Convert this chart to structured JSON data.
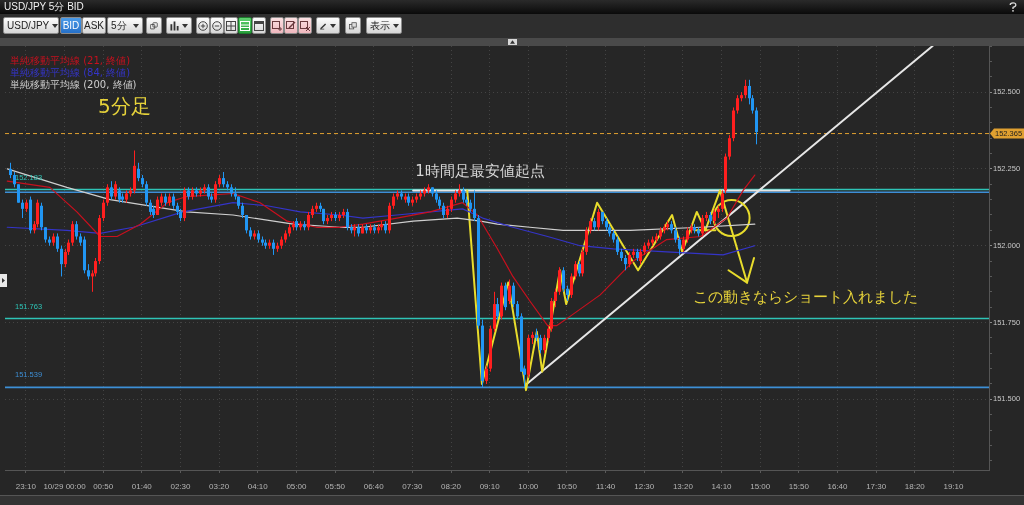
{
  "chart_data": {
    "type": "candlestick",
    "title": "USD/JPY 5分 BID",
    "subtitle": "5分足",
    "annotations": [
      "USD/JPY",
      "BID",
      "ASK",
      "5分",
      "表示",
      "1時間足最安値起点",
      "この動きならショート入れました"
    ],
    "legend": "top left",
    "grid": true,
    "xlim": [
      "--10-28T22:43",
      "--10-29T19:56"
    ],
    "ylim": [
      151.27,
      152.65
    ],
    "xticks": [
      {
        "value": "--10-28T23:10",
        "label": "23:10"
      },
      {
        "value": "--10-29T00:00",
        "label": "10/29 00:00"
      },
      {
        "value": "--10-29T00:50",
        "label": "00:50"
      },
      {
        "value": "--10-29T01:40",
        "label": "01:40"
      },
      {
        "value": "--10-29T02:30",
        "label": "02:30"
      },
      {
        "value": "--10-29T03:20",
        "label": "03:20"
      },
      {
        "value": "--10-29T04:10",
        "label": "04:10"
      },
      {
        "value": "--10-29T05:00",
        "label": "05:00"
      },
      {
        "value": "--10-29T05:50",
        "label": "05:50"
      },
      {
        "value": "--10-29T06:40",
        "label": "06:40"
      },
      {
        "value": "--10-29T07:30",
        "label": "07:30"
      },
      {
        "value": "--10-29T08:20",
        "label": "08:20"
      },
      {
        "value": "--10-29T09:10",
        "label": "09:10"
      },
      {
        "value": "--10-29T10:00",
        "label": "10:00"
      },
      {
        "value": "--10-29T10:50",
        "label": "10:50"
      },
      {
        "value": "--10-29T11:40",
        "label": "11:40"
      },
      {
        "value": "--10-29T12:30",
        "label": "12:30"
      },
      {
        "value": "--10-29T13:20",
        "label": "13:20"
      },
      {
        "value": "--10-29T14:10",
        "label": "14:10"
      },
      {
        "value": "--10-29T15:00",
        "label": "15:00"
      },
      {
        "value": "--10-29T15:50",
        "label": "15:50"
      },
      {
        "value": "--10-29T16:40",
        "label": "16:40"
      },
      {
        "value": "--10-29T17:30",
        "label": "17:30"
      },
      {
        "value": "--10-29T18:20",
        "label": "18:20"
      },
      {
        "value": "--10-29T19:10",
        "label": "19:10"
      }
    ],
    "yticks": [
      {
        "value": 151.3,
        "label": null
      },
      {
        "value": 151.35,
        "label": null
      },
      {
        "value": 151.4,
        "label": null
      },
      {
        "value": 151.45,
        "label": null
      },
      {
        "value": 151.5,
        "label": "151.500"
      },
      {
        "value": 151.55,
        "label": null
      },
      {
        "value": 151.6,
        "label": null
      },
      {
        "value": 151.65,
        "label": null
      },
      {
        "value": 151.7,
        "label": null
      },
      {
        "value": 151.75,
        "label": "151.750"
      },
      {
        "value": 151.8,
        "label": null
      },
      {
        "value": 151.85,
        "label": null
      },
      {
        "value": 151.9,
        "label": null
      },
      {
        "value": 151.95,
        "label": null
      },
      {
        "value": 152,
        "label": "152.000"
      },
      {
        "value": 152.05,
        "label": null
      },
      {
        "value": 152.1,
        "label": null
      },
      {
        "value": 152.15,
        "label": null
      },
      {
        "value": 152.2,
        "label": null
      },
      {
        "value": 152.25,
        "label": "152.250"
      },
      {
        "value": 152.3,
        "label": null
      },
      {
        "value": 152.35,
        "label": null
      },
      {
        "value": 152.4,
        "label": null
      },
      {
        "value": 152.45,
        "label": null
      },
      {
        "value": 152.5,
        "label": "152.500"
      },
      {
        "value": 152.55,
        "label": null
      },
      {
        "value": 152.6,
        "label": null
      },
      {
        "value": 152.65,
        "label": null
      }
    ],
    "ref_lines": [
      {
        "axis": "y",
        "value": 152.183,
        "label": "152.183",
        "color": "#2ec4b6"
      },
      {
        "axis": "y",
        "value": 152.174,
        "color": "#3d8fd6"
      },
      {
        "axis": "y",
        "value": 151.763,
        "label": "151.763",
        "color": "#2ec4b6"
      },
      {
        "axis": "y",
        "value": 151.539,
        "label": "151.539",
        "color": "#3d8fd6"
      },
      {
        "axis": "y",
        "value": 152.365,
        "label": "152.365",
        "color": "#e0a030",
        "line_style": "dashed"
      }
    ],
    "x": [
      "--10-28T22:50",
      "--10-28T22:55",
      "--10-28T23:00",
      "--10-28T23:05",
      "--10-28T23:10",
      "--10-28T23:15",
      "--10-28T23:20",
      "--10-28T23:25",
      "--10-28T23:30",
      "--10-28T23:35",
      "--10-28T23:40",
      "--10-28T23:45",
      "--10-28T23:50",
      "--10-28T23:55",
      "--10-29T00:00",
      "--10-29T00:05",
      "--10-29T00:10",
      "--10-29T00:15",
      "--10-29T00:20",
      "--10-29T00:25",
      "--10-29T00:30",
      "--10-29T00:35",
      "--10-29T00:40",
      "--10-29T00:45",
      "--10-29T00:50",
      "--10-29T00:55",
      "--10-29T01:00",
      "--10-29T01:05",
      "--10-29T01:10",
      "--10-29T01:15",
      "--10-29T01:20",
      "--10-29T01:25",
      "--10-29T01:30",
      "--10-29T01:35",
      "--10-29T01:40",
      "--10-29T01:45",
      "--10-29T01:50",
      "--10-29T01:55",
      "--10-29T02:00",
      "--10-29T02:05",
      "--10-29T02:10",
      "--10-29T02:15",
      "--10-29T02:20",
      "--10-29T02:25",
      "--10-29T02:30",
      "--10-29T02:35",
      "--10-29T02:40",
      "--10-29T02:45",
      "--10-29T02:50",
      "--10-29T02:55",
      "--10-29T03:00",
      "--10-29T03:05",
      "--10-29T03:10",
      "--10-29T03:15",
      "--10-29T03:20",
      "--10-29T03:25",
      "--10-29T03:30",
      "--10-29T03:35",
      "--10-29T03:40",
      "--10-29T03:45",
      "--10-29T03:50",
      "--10-29T03:55",
      "--10-29T04:00",
      "--10-29T04:05",
      "--10-29T04:10",
      "--10-29T04:15",
      "--10-29T04:20",
      "--10-29T04:25",
      "--10-29T04:30",
      "--10-29T04:35",
      "--10-29T04:40",
      "--10-29T04:45",
      "--10-29T04:50",
      "--10-29T04:55",
      "--10-29T05:00",
      "--10-29T05:05",
      "--10-29T05:10",
      "--10-29T05:15",
      "--10-29T05:20",
      "--10-29T05:25",
      "--10-29T05:30",
      "--10-29T05:35",
      "--10-29T05:40",
      "--10-29T05:45",
      "--10-29T05:50",
      "--10-29T05:55",
      "--10-29T06:00",
      "--10-29T06:05",
      "--10-29T06:10",
      "--10-29T06:15",
      "--10-29T06:20",
      "--10-29T06:25",
      "--10-29T06:30",
      "--10-29T06:35",
      "--10-29T06:40",
      "--10-29T06:45",
      "--10-29T06:50",
      "--10-29T06:55",
      "--10-29T07:00",
      "--10-29T07:05",
      "--10-29T07:10",
      "--10-29T07:15",
      "--10-29T07:20",
      "--10-29T07:25",
      "--10-29T07:30",
      "--10-29T07:35",
      "--10-29T07:40",
      "--10-29T07:45",
      "--10-29T07:50",
      "--10-29T07:55",
      "--10-29T08:00",
      "--10-29T08:05",
      "--10-29T08:10",
      "--10-29T08:15",
      "--10-29T08:20",
      "--10-29T08:25",
      "--10-29T08:30",
      "--10-29T08:35",
      "--10-29T08:40",
      "--10-29T08:45",
      "--10-29T08:50",
      "--10-29T08:55",
      "--10-29T09:00",
      "--10-29T09:05",
      "--10-29T09:10",
      "--10-29T09:15",
      "--10-29T09:20",
      "--10-29T09:25",
      "--10-29T09:30",
      "--10-29T09:35",
      "--10-29T09:40",
      "--10-29T09:45",
      "--10-29T09:50",
      "--10-29T09:55",
      "--10-29T10:00",
      "--10-29T10:05",
      "--10-29T10:10",
      "--10-29T10:15",
      "--10-29T10:20",
      "--10-29T10:25",
      "--10-29T10:30",
      "--10-29T10:35",
      "--10-29T10:40",
      "--10-29T10:45",
      "--10-29T10:50",
      "--10-29T10:55",
      "--10-29T11:00",
      "--10-29T11:05",
      "--10-29T11:10",
      "--10-29T11:15",
      "--10-29T11:20",
      "--10-29T11:25",
      "--10-29T11:30",
      "--10-29T11:35",
      "--10-29T11:40",
      "--10-29T11:45",
      "--10-29T11:50",
      "--10-29T11:55",
      "--10-29T12:00",
      "--10-29T12:05",
      "--10-29T12:10",
      "--10-29T12:15",
      "--10-29T12:20",
      "--10-29T12:25",
      "--10-29T12:30",
      "--10-29T12:35",
      "--10-29T12:40",
      "--10-29T12:45",
      "--10-29T12:50",
      "--10-29T12:55",
      "--10-29T13:00",
      "--10-29T13:05",
      "--10-29T13:10",
      "--10-29T13:15",
      "--10-29T13:20",
      "--10-29T13:25",
      "--10-29T13:30",
      "--10-29T13:35",
      "--10-29T13:40",
      "--10-29T13:45",
      "--10-29T13:50",
      "--10-29T13:55",
      "--10-29T14:00",
      "--10-29T14:05",
      "--10-29T14:10",
      "--10-29T14:15",
      "--10-29T14:20",
      "--10-29T14:25",
      "--10-29T14:30",
      "--10-29T14:35",
      "--10-29T14:40",
      "--10-29T14:45",
      "--10-29T14:50",
      "--10-29T14:55"
    ],
    "ohlc": [
      [
        152.25,
        152.27,
        152.22,
        152.23
      ],
      [
        152.23,
        152.24,
        152.19,
        152.2
      ],
      [
        152.2,
        152.2,
        152.14,
        152.14
      ],
      [
        152.14,
        152.15,
        152.09,
        152.12
      ],
      [
        152.12,
        152.15,
        152.11,
        152.14
      ],
      [
        152.15,
        152.16,
        152.04,
        152.05
      ],
      [
        152.05,
        152.08,
        152.04,
        152.07
      ],
      [
        152.07,
        152.15,
        152.06,
        152.14
      ],
      [
        152.13,
        152.14,
        152.05,
        152.06
      ],
      [
        152.06,
        152.06,
        152.01,
        152.02
      ],
      [
        152.02,
        152.03,
        152,
        152.01
      ],
      [
        152.01,
        152.04,
        152,
        152.03
      ],
      [
        152.03,
        152.04,
        151.98,
        151.99
      ],
      [
        151.99,
        152,
        151.9,
        151.94
      ],
      [
        151.94,
        151.99,
        151.93,
        151.98
      ],
      [
        151.98,
        152.02,
        151.97,
        152.01
      ],
      [
        152.01,
        152.08,
        152,
        152.07
      ],
      [
        152.07,
        152.08,
        152.02,
        152.03
      ],
      [
        152.03,
        152.04,
        152,
        152.01
      ],
      [
        152.02,
        152.03,
        151.91,
        151.92
      ],
      [
        151.92,
        151.94,
        151.89,
        151.9
      ],
      [
        151.9,
        151.92,
        151.85,
        151.91
      ],
      [
        151.91,
        151.96,
        151.9,
        151.95
      ],
      [
        151.95,
        152.1,
        151.94,
        152.09
      ],
      [
        152.09,
        152.15,
        152.08,
        152.14
      ],
      [
        152.14,
        152.2,
        152.13,
        152.19
      ],
      [
        152.19,
        152.21,
        152.15,
        152.16
      ],
      [
        152.16,
        152.21,
        152.15,
        152.2
      ],
      [
        152.18,
        152.19,
        152.14,
        152.15
      ],
      [
        152.16,
        152.17,
        152.14,
        152.15
      ],
      [
        152.15,
        152.18,
        152.14,
        152.17
      ],
      [
        152.17,
        152.19,
        152.16,
        152.18
      ],
      [
        152.18,
        152.31,
        152.17,
        152.26
      ],
      [
        152.25,
        152.27,
        152.21,
        152.22
      ],
      [
        152.22,
        152.23,
        152.19,
        152.2
      ],
      [
        152.2,
        152.21,
        152.13,
        152.14
      ],
      [
        152.14,
        152.15,
        152.1,
        152.11
      ],
      [
        152.12,
        152.13,
        152.09,
        152.1
      ],
      [
        152.1,
        152.16,
        152.1,
        152.15
      ],
      [
        152.14,
        152.17,
        152.13,
        152.16
      ],
      [
        152.16,
        152.17,
        152.13,
        152.14
      ],
      [
        152.14,
        152.17,
        152.13,
        152.16
      ],
      [
        152.16,
        152.17,
        152.12,
        152.13
      ],
      [
        152.13,
        152.14,
        152.1,
        152.11
      ],
      [
        152.11,
        152.12,
        152.08,
        152.09
      ],
      [
        152.09,
        152.19,
        152.08,
        152.18
      ],
      [
        152.18,
        152.19,
        152.15,
        152.16
      ],
      [
        152.16,
        152.19,
        152.15,
        152.18
      ],
      [
        152.18,
        152.19,
        152.16,
        152.17
      ],
      [
        152.17,
        152.19,
        152.16,
        152.18
      ],
      [
        152.18,
        152.2,
        152.17,
        152.19
      ],
      [
        152.19,
        152.2,
        152.15,
        152.16
      ],
      [
        152.16,
        152.17,
        152.14,
        152.15
      ],
      [
        152.15,
        152.21,
        152.14,
        152.2
      ],
      [
        152.2,
        152.23,
        152.19,
        152.22
      ],
      [
        152.22,
        152.24,
        152.19,
        152.2
      ],
      [
        152.2,
        152.21,
        152.18,
        152.19
      ],
      [
        152.19,
        152.2,
        152.16,
        152.17
      ],
      [
        152.17,
        152.19,
        152.15,
        152.16
      ],
      [
        152.16,
        152.16,
        152.12,
        152.13
      ],
      [
        152.13,
        152.14,
        152.09,
        152.1
      ],
      [
        152.1,
        152.1,
        152.04,
        152.05
      ],
      [
        152.05,
        152.06,
        152.02,
        152.03
      ],
      [
        152.03,
        152.05,
        152.02,
        152.04
      ],
      [
        152.04,
        152.05,
        152.01,
        152.02
      ],
      [
        152.02,
        152.03,
        152,
        152.01
      ],
      [
        152.01,
        152.02,
        151.99,
        152
      ],
      [
        152,
        152.02,
        151.99,
        152.01
      ],
      [
        152.01,
        152.02,
        151.97,
        151.99
      ],
      [
        151.99,
        152.01,
        151.98,
        152
      ],
      [
        152,
        152.03,
        151.99,
        152.02
      ],
      [
        152.02,
        152.05,
        152.01,
        152.04
      ],
      [
        152.04,
        152.07,
        152.03,
        152.06
      ],
      [
        152.06,
        152.08,
        152.05,
        152.07
      ],
      [
        152.08,
        152.09,
        152.05,
        152.06
      ],
      [
        152.06,
        152.08,
        152.05,
        152.07
      ],
      [
        152.07,
        152.08,
        152.05,
        152.06
      ],
      [
        152.06,
        152.11,
        152.05,
        152.1
      ],
      [
        152.1,
        152.13,
        152.09,
        152.12
      ],
      [
        152.12,
        152.14,
        152.11,
        152.13
      ],
      [
        152.13,
        152.14,
        152.11,
        152.12
      ],
      [
        152.12,
        152.12,
        152.07,
        152.08
      ],
      [
        152.08,
        152.1,
        152.07,
        152.09
      ],
      [
        152.09,
        152.11,
        152.08,
        152.1
      ],
      [
        152.1,
        152.11,
        152.08,
        152.09
      ],
      [
        152.09,
        152.11,
        152.08,
        152.1
      ],
      [
        152.1,
        152.12,
        152.09,
        152.11
      ],
      [
        152.11,
        152.12,
        152.05,
        152.06
      ],
      [
        152.06,
        152.07,
        152.04,
        152.05
      ],
      [
        152.05,
        152.07,
        152.03,
        152.06
      ],
      [
        152.06,
        152.07,
        152.03,
        152.04
      ],
      [
        152.04,
        152.07,
        152.04,
        152.06
      ],
      [
        152.06,
        152.07,
        152.04,
        152.05
      ],
      [
        152.05,
        152.07,
        152.04,
        152.06
      ],
      [
        152.06,
        152.07,
        152.04,
        152.05
      ],
      [
        152.05,
        152.07,
        152.04,
        152.06
      ],
      [
        152.06,
        152.08,
        152.05,
        152.07
      ],
      [
        152.07,
        152.08,
        152.04,
        152.05
      ],
      [
        152.05,
        152.14,
        152.04,
        152.13
      ],
      [
        152.13,
        152.17,
        152.12,
        152.16
      ],
      [
        152.16,
        152.18,
        152.15,
        152.17
      ],
      [
        152.17,
        152.18,
        152.15,
        152.16
      ],
      [
        152.15,
        152.17,
        152.14,
        152.16
      ],
      [
        152.16,
        152.17,
        152.13,
        152.14
      ],
      [
        152.14,
        152.16,
        152.13,
        152.15
      ],
      [
        152.15,
        152.17,
        152.14,
        152.16
      ],
      [
        152.16,
        152.18,
        152.15,
        152.17
      ],
      [
        152.17,
        152.19,
        152.16,
        152.18
      ],
      [
        152.18,
        152.2,
        152.17,
        152.19
      ],
      [
        152.19,
        152.19,
        152.16,
        152.17
      ],
      [
        152.17,
        152.18,
        152.14,
        152.15
      ],
      [
        152.15,
        152.16,
        152.12,
        152.13
      ],
      [
        152.13,
        152.14,
        152.09,
        152.1
      ],
      [
        152.1,
        152.13,
        152.09,
        152.12
      ],
      [
        152.12,
        152.16,
        152.11,
        152.15
      ],
      [
        152.15,
        152.18,
        152.14,
        152.17
      ],
      [
        152.17,
        152.2,
        152.16,
        152.18
      ],
      [
        152.18,
        152.19,
        152.14,
        152.15
      ],
      [
        152.15,
        152.16,
        152.13,
        152.14
      ],
      [
        152.14,
        152.15,
        152.11,
        152.12
      ],
      [
        152.12,
        152.18,
        152.08,
        152.09
      ],
      [
        152.09,
        152.1,
        151.73,
        151.74
      ],
      [
        151.74,
        151.76,
        151.54,
        151.56
      ],
      [
        151.56,
        151.61,
        151.55,
        151.6
      ],
      [
        151.6,
        151.74,
        151.59,
        151.73
      ],
      [
        151.73,
        151.85,
        151.72,
        151.81
      ],
      [
        151.81,
        151.83,
        151.76,
        151.77
      ],
      [
        151.77,
        151.88,
        151.76,
        151.87
      ],
      [
        151.87,
        151.88,
        151.79,
        151.8
      ],
      [
        151.82,
        151.89,
        151.81,
        151.87
      ],
      [
        151.87,
        151.88,
        151.8,
        151.81
      ],
      [
        151.81,
        151.82,
        151.76,
        151.77
      ],
      [
        151.77,
        151.78,
        151.59,
        151.59
      ],
      [
        151.6,
        151.61,
        151.54,
        151.58
      ],
      [
        151.58,
        151.71,
        151.57,
        151.7
      ],
      [
        151.7,
        151.72,
        151.68,
        151.71
      ],
      [
        151.71,
        151.73,
        151.69,
        151.7
      ],
      [
        151.7,
        151.71,
        151.65,
        151.66
      ],
      [
        151.66,
        151.71,
        151.65,
        151.7
      ],
      [
        151.7,
        151.74,
        151.69,
        151.73
      ],
      [
        151.73,
        151.83,
        151.72,
        151.82
      ],
      [
        151.82,
        151.86,
        151.8,
        151.85
      ],
      [
        151.85,
        151.93,
        151.84,
        151.92
      ],
      [
        151.92,
        151.93,
        151.85,
        151.86
      ],
      [
        151.86,
        151.87,
        151.82,
        151.84
      ],
      [
        151.84,
        151.91,
        151.83,
        151.9
      ],
      [
        151.9,
        151.95,
        151.89,
        151.94
      ],
      [
        151.94,
        151.95,
        151.9,
        151.91
      ],
      [
        151.91,
        151.99,
        151.9,
        151.98
      ],
      [
        151.98,
        152.06,
        151.97,
        152.05
      ],
      [
        152.05,
        152.09,
        152.04,
        152.08
      ],
      [
        152.08,
        152.09,
        152.05,
        152.06
      ],
      [
        152.06,
        152.12,
        152.05,
        152.11
      ],
      [
        152.11,
        152.11,
        152.07,
        152.08
      ],
      [
        152.08,
        152.09,
        152.05,
        152.06
      ],
      [
        152.06,
        152.07,
        152.03,
        152.04
      ],
      [
        152.04,
        152.05,
        152.01,
        152.02
      ],
      [
        152.02,
        152.03,
        151.97,
        151.98
      ],
      [
        151.98,
        151.99,
        151.95,
        151.96
      ],
      [
        151.96,
        151.97,
        151.92,
        151.94
      ],
      [
        151.94,
        151.98,
        151.93,
        151.97
      ],
      [
        151.97,
        151.99,
        151.96,
        151.98
      ],
      [
        151.98,
        151.99,
        151.95,
        151.96
      ],
      [
        151.95,
        151.99,
        151.94,
        151.98
      ],
      [
        151.98,
        152.01,
        151.97,
        152
      ],
      [
        152,
        152.02,
        151.99,
        152.01
      ],
      [
        152.01,
        152.03,
        152,
        152.02
      ],
      [
        152.02,
        152.04,
        152.01,
        152.03
      ],
      [
        152.03,
        152.06,
        152.02,
        152.05
      ],
      [
        152.05,
        152.07,
        152.04,
        152.06
      ],
      [
        152.06,
        152.08,
        152.05,
        152.07
      ],
      [
        152.07,
        152.08,
        152.04,
        152.05
      ],
      [
        152.05,
        152.06,
        152.01,
        152.02
      ],
      [
        152.02,
        152.03,
        151.97,
        151.99
      ],
      [
        151.99,
        152.03,
        151.98,
        152.02
      ],
      [
        152.02,
        152.06,
        152.01,
        152.05
      ],
      [
        152.05,
        152.07,
        152.04,
        152.06
      ],
      [
        152.06,
        152.07,
        152.04,
        152.05
      ],
      [
        152.05,
        152.06,
        152.03,
        152.04
      ],
      [
        152.04,
        152.1,
        152.03,
        152.09
      ],
      [
        152.09,
        152.11,
        152.08,
        152.1
      ],
      [
        152.1,
        152.11,
        152.07,
        152.08
      ],
      [
        152.08,
        152.12,
        152.07,
        152.11
      ],
      [
        152.11,
        152.13,
        152.09,
        152.12
      ],
      [
        152.12,
        152.18,
        152.11,
        152.17
      ],
      [
        152.18,
        152.3,
        152.17,
        152.29
      ],
      [
        152.29,
        152.36,
        152.28,
        152.35
      ],
      [
        152.35,
        152.45,
        152.34,
        152.44
      ],
      [
        152.44,
        152.49,
        152.43,
        152.48
      ],
      [
        152.48,
        152.5,
        152.47,
        152.49
      ],
      [
        152.49,
        152.54,
        152.48,
        152.52
      ],
      [
        152.52,
        152.54,
        152.46,
        152.48
      ],
      [
        152.48,
        152.49,
        152.43,
        152.44
      ],
      [
        152.44,
        152.45,
        152.33,
        152.37
      ]
    ],
    "colors": [
      "#2196f3",
      "#2196f3",
      "#2196f3",
      "#2196f3",
      "#ff1f1f",
      "#2196f3",
      "#ff1f1f",
      "#ff1f1f",
      "#2196f3",
      "#2196f3",
      "#2196f3",
      "#ff1f1f",
      "#2196f3",
      "#2196f3",
      "#ff1f1f",
      "#ff1f1f",
      "#ff1f1f",
      "#2196f3",
      "#2196f3",
      "#2196f3",
      "#2196f3",
      "#ff1f1f",
      "#ff1f1f",
      "#ff1f1f",
      "#ff1f1f",
      "#ff1f1f",
      "#2196f3",
      "#ff1f1f",
      "#2196f3",
      "#2196f3",
      "#ff1f1f",
      "#ff1f1f",
      "#ff1f1f",
      "#2196f3",
      "#2196f3",
      "#2196f3",
      "#2196f3",
      "#2196f3",
      "#ff1f1f",
      "#ff1f1f",
      "#2196f3",
      "#ff1f1f",
      "#2196f3",
      "#2196f3",
      "#2196f3",
      "#ff1f1f",
      "#2196f3",
      "#ff1f1f",
      "#2196f3",
      "#ff1f1f",
      "#ff1f1f",
      "#2196f3",
      "#2196f3",
      "#ff1f1f",
      "#ff1f1f",
      "#2196f3",
      "#2196f3",
      "#2196f3",
      "#2196f3",
      "#2196f3",
      "#2196f3",
      "#2196f3",
      "#2196f3",
      "#ff1f1f",
      "#2196f3",
      "#2196f3",
      "#2196f3",
      "#ff1f1f",
      "#2196f3",
      "#ff1f1f",
      "#ff1f1f",
      "#ff1f1f",
      "#ff1f1f",
      "#ff1f1f",
      "#2196f3",
      "#ff1f1f",
      "#2196f3",
      "#ff1f1f",
      "#ff1f1f",
      "#ff1f1f",
      "#2196f3",
      "#2196f3",
      "#ff1f1f",
      "#ff1f1f",
      "#2196f3",
      "#ff1f1f",
      "#ff1f1f",
      "#2196f3",
      "#2196f3",
      "#ff1f1f",
      "#2196f3",
      "#ff1f1f",
      "#2196f3",
      "#ff1f1f",
      "#2196f3",
      "#ff1f1f",
      "#ff1f1f",
      "#2196f3",
      "#ff1f1f",
      "#ff1f1f",
      "#ff1f1f",
      "#2196f3",
      "#ff1f1f",
      "#2196f3",
      "#ff1f1f",
      "#ff1f1f",
      "#ff1f1f",
      "#ff1f1f",
      "#ff1f1f",
      "#2196f3",
      "#2196f3",
      "#2196f3",
      "#2196f3",
      "#ff1f1f",
      "#ff1f1f",
      "#ff1f1f",
      "#ff1f1f",
      "#2196f3",
      "#2196f3",
      "#2196f3",
      "#2196f3",
      "#2196f3",
      "#2196f3",
      "#ff1f1f",
      "#ff1f1f",
      "#ff1f1f",
      "#2196f3",
      "#ff1f1f",
      "#2196f3",
      "#ff1f1f",
      "#2196f3",
      "#2196f3",
      "#2196f3",
      "#2196f3",
      "#ff1f1f",
      "#ff1f1f",
      "#2196f3",
      "#2196f3",
      "#ff1f1f",
      "#ff1f1f",
      "#ff1f1f",
      "#ff1f1f",
      "#ff1f1f",
      "#2196f3",
      "#2196f3",
      "#ff1f1f",
      "#ff1f1f",
      "#2196f3",
      "#ff1f1f",
      "#ff1f1f",
      "#ff1f1f",
      "#2196f3",
      "#ff1f1f",
      "#2196f3",
      "#2196f3",
      "#2196f3",
      "#2196f3",
      "#2196f3",
      "#2196f3",
      "#2196f3",
      "#ff1f1f",
      "#ff1f1f",
      "#2196f3",
      "#ff1f1f",
      "#ff1f1f",
      "#ff1f1f",
      "#ff1f1f",
      "#ff1f1f",
      "#ff1f1f",
      "#ff1f1f",
      "#ff1f1f",
      "#2196f3",
      "#2196f3",
      "#2196f3",
      "#ff1f1f",
      "#ff1f1f",
      "#ff1f1f",
      "#2196f3",
      "#2196f3",
      "#ff1f1f",
      "#ff1f1f",
      "#2196f3",
      "#ff1f1f",
      "#ff1f1f",
      "#ff1f1f",
      "#ff1f1f",
      "#ff1f1f",
      "#ff1f1f",
      "#ff1f1f",
      "#ff1f1f",
      "#ff1f1f",
      "#2196f3",
      "#2196f3",
      "#2196f3"
    ],
    "series": [
      {
        "name": "単純移動平均線 (21, 終値)",
        "type": "line",
        "color": "#c8101e",
        "x": [
          "--10-28T22:46",
          "--10-28T23:41",
          "--10-29T00:16",
          "--10-29T00:46",
          "--10-29T01:08",
          "--10-29T01:38",
          "--10-29T02:13",
          "--10-29T02:38",
          "--10-29T03:38",
          "--10-29T04:13",
          "--10-29T04:48",
          "--10-29T05:26",
          "--10-29T05:56",
          "--10-29T06:26",
          "--10-29T07:10",
          "--10-29T07:53",
          "--10-29T08:35",
          "--10-29T08:54",
          "--10-29T09:20",
          "--10-29T09:40",
          "--10-29T10:02",
          "--10-29T10:25",
          "--10-29T10:37",
          "--10-29T10:54",
          "--10-29T11:33",
          "--10-29T12:16",
          "--10-29T12:59",
          "--10-29T13:43",
          "--10-29T14:17",
          "--10-29T14:38",
          "--10-29T14:53"
        ],
        "values": [
          152.21,
          152.19,
          152.11,
          152.03,
          152.03,
          152.07,
          152.14,
          152.16,
          152.17,
          152.14,
          152.08,
          152.06,
          152.06,
          152.07,
          152.09,
          152.11,
          152.14,
          152.1,
          151.99,
          151.9,
          151.82,
          151.74,
          151.74,
          151.77,
          151.84,
          151.95,
          152.02,
          152.03,
          152.09,
          152.18,
          152.23
        ]
      },
      {
        "name": "単純移動平均線 (84, 終値)",
        "type": "line",
        "color": "#3434c8",
        "x": [
          "--10-28T22:46",
          "--10-29T00:03",
          "--10-29T00:46",
          "--10-29T01:29",
          "--10-29T02:33",
          "--10-29T03:38",
          "--10-29T04:22",
          "--10-29T05:05",
          "--10-29T05:56",
          "--10-29T06:26",
          "--10-29T07:10",
          "--10-29T07:53",
          "--10-29T08:35",
          "--10-29T09:01",
          "--10-29T09:40",
          "--10-29T10:25",
          "--10-29T11:07",
          "--10-29T11:50",
          "--10-29T12:59",
          "--10-29T14:12",
          "--10-29T14:53"
        ],
        "values": [
          152.06,
          152.05,
          152.04,
          152.06,
          152.11,
          152.14,
          152.13,
          152.11,
          152.1,
          152.09,
          152.1,
          152.11,
          152.12,
          152.09,
          152.06,
          152.03,
          152,
          151.99,
          151.98,
          151.97,
          152
        ]
      },
      {
        "name": "単純移動平均線 (200, 終値)",
        "type": "line",
        "color": "#cfcfcf",
        "x": [
          "--10-28T22:46",
          "--10-29T00:03",
          "--10-29T00:59",
          "--10-29T02:38",
          "--10-29T03:38",
          "--10-29T04:56",
          "--10-29T05:56",
          "--10-29T06:26",
          "--10-29T07:31",
          "--10-29T08:28",
          "--10-29T08:58",
          "--10-29T09:20",
          "--10-29T10:02",
          "--10-29T10:45",
          "--10-29T11:29",
          "--10-29T12:12",
          "--10-29T13:43",
          "--10-29T14:53"
        ],
        "values": [
          152.25,
          152.19,
          152.15,
          152.11,
          152.1,
          152.07,
          152.06,
          152.06,
          152.08,
          152.09,
          152.08,
          152.07,
          152.06,
          152.05,
          152.05,
          152.05,
          152.06,
          152.07
        ]
      },
      {
        "type": "line",
        "color": "#e8dc2c",
        "x": [
          "--10-29T08:41",
          "--10-29T09:00",
          "--10-29T09:34",
          "--10-29T09:57",
          "--10-29T10:11",
          "--10-29T10:18",
          "--10-29T10:41",
          "--10-29T10:49",
          "--10-29T11:29",
          "--10-29T12:22",
          "--10-29T13:06",
          "--10-29T13:19",
          "--10-29T13:38",
          "--10-29T13:49",
          "--10-29T14:08",
          "--10-29T14:43"
        ],
        "values": [
          152.18,
          151.55,
          151.88,
          151.53,
          151.72,
          151.59,
          151.92,
          151.81,
          152.14,
          151.92,
          152.1,
          151.98,
          152.11,
          152.05,
          152.18,
          151.88
        ]
      },
      {
        "type": "line",
        "color": "#e8dc2c",
        "x": [
          "--10-29T14:19",
          "--10-29T14:43",
          "--10-29T14:52"
        ],
        "values": [
          151.92,
          151.88,
          151.96
        ]
      },
      {
        "type": "line",
        "color": "#e8dc2c",
        "x": [
          "--10-29T13:35",
          "--10-29T14:02"
        ],
        "values": [
          152.05,
          152.05
        ]
      },
      {
        "type": "scatter",
        "color": "#e8dc2c",
        "marker": "circle",
        "x": [
          "--10-29T14:23"
        ],
        "values": [
          152.09
        ]
      },
      {
        "type": "line",
        "color": "#e6e6e6",
        "x": [
          "--10-29T07:31",
          "--10-29T15:38"
        ],
        "values": [
          152.18,
          152.18
        ]
      },
      {
        "type": "line",
        "color": "#e6e6e6",
        "x": [
          "--10-29T09:58",
          "--10-29T18:43"
        ],
        "values": [
          151.55,
          152.65
        ]
      }
    ]
  }
}
